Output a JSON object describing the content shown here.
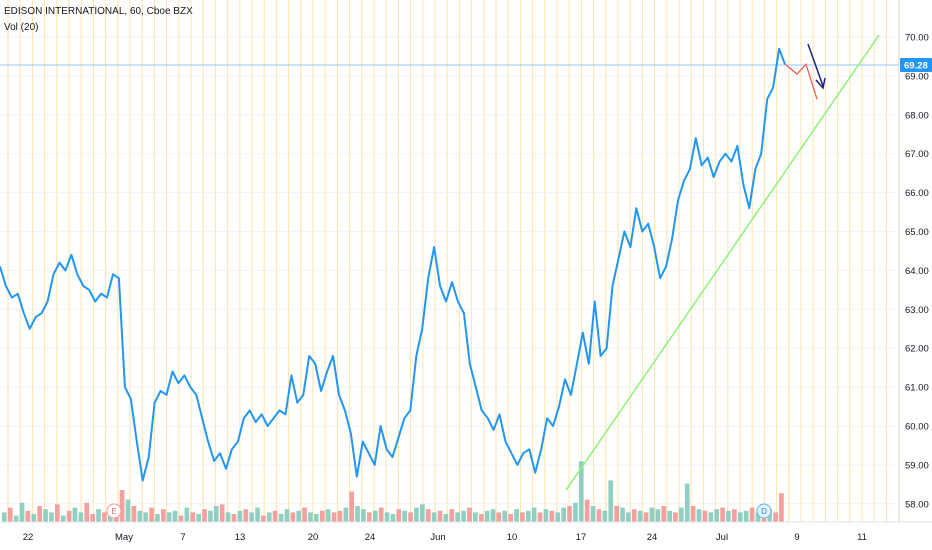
{
  "header": {
    "symbol_line": "EDISON INTERNATIONAL, 60, Cboe BZX",
    "indicator_line": "Vol (20)"
  },
  "price_axis": {
    "ticks": [
      "70.00",
      "69.00",
      "68.00",
      "67.00",
      "66.00",
      "65.00",
      "64.00",
      "63.00",
      "62.00",
      "61.00",
      "60.00",
      "59.00",
      "58.00"
    ],
    "current_price": "69.28"
  },
  "time_axis": {
    "labels": [
      "22",
      "May",
      "7",
      "13",
      "20",
      "24",
      "Jun",
      "10",
      "17",
      "24",
      "Jul",
      "9",
      "11"
    ]
  },
  "badges": {
    "earnings": "E",
    "dividend": "D"
  },
  "colors": {
    "price_line": "#2196f3",
    "trend_line": "#8ef07a",
    "projection": "#ef5350",
    "arrow": "#1a237e",
    "grid_vertical": "#fde3a7",
    "grid_horizontal": "#f0f3fa",
    "vol_up": "#7cc8b8",
    "vol_down": "#f1918e",
    "price_tag_bg": "#2196f3"
  },
  "chart_data": {
    "type": "line",
    "title": "",
    "xlabel": "",
    "ylabel": "",
    "ylim": [
      57.5,
      70.3
    ],
    "x_labels": [
      "22",
      "May",
      "7",
      "13",
      "20",
      "24",
      "Jun",
      "10",
      "17",
      "24",
      "Jul",
      "9",
      "11"
    ],
    "series": [
      {
        "values": [
          64.1,
          63.6,
          63.3,
          63.4,
          62.9,
          62.5,
          62.8,
          62.9,
          63.2,
          63.9,
          64.2,
          64.0,
          64.4,
          63.9,
          63.6,
          63.5,
          63.2,
          63.4,
          63.3,
          63.9,
          63.8,
          61.0,
          60.7,
          59.6,
          58.6,
          59.2,
          60.6,
          60.9,
          60.8,
          61.4,
          61.1,
          61.3,
          61.0,
          60.8,
          60.2,
          59.6,
          59.1,
          59.3,
          58.9,
          59.4,
          59.6,
          60.2,
          60.4,
          60.1,
          60.3,
          60.0,
          60.2,
          60.4,
          60.3,
          61.3,
          60.6,
          60.8,
          61.8,
          61.6,
          60.9,
          61.4,
          61.8,
          60.8,
          60.4,
          59.8,
          58.7,
          59.6,
          59.3,
          59.0,
          60.0,
          59.4,
          59.2,
          59.7,
          60.2,
          60.4,
          61.8,
          62.5,
          63.8,
          64.6,
          63.6,
          63.2,
          63.7,
          63.2,
          62.9,
          61.6,
          61.0,
          60.4,
          60.2,
          59.9,
          60.3,
          59.6,
          59.3,
          59.0,
          59.3,
          59.4,
          58.8,
          59.4,
          60.2,
          60.0,
          60.5,
          61.2,
          60.8,
          61.6,
          62.4,
          61.6,
          63.2,
          61.8,
          62.0,
          63.6,
          64.3,
          65.0,
          64.6,
          65.6,
          65.0,
          65.2,
          64.6,
          63.8,
          64.1,
          64.8,
          65.8,
          66.3,
          66.6,
          67.4,
          66.7,
          66.9,
          66.4,
          66.8,
          67.0,
          66.8,
          67.2,
          66.2,
          65.6,
          66.6,
          67.0,
          68.4,
          68.7,
          69.7,
          69.3
        ]
      }
    ],
    "projection_values": [
      69.3,
      69.05,
      69.3,
      68.4
    ],
    "trend_line": {
      "from": {
        "price": 58.35
      },
      "to": {
        "price": 70.05
      }
    },
    "current_price": 69.28,
    "grid": true,
    "volume_series": [
      0.3,
      0.45,
      0.2,
      0.6,
      0.35,
      0.25,
      0.5,
      0.4,
      0.3,
      0.55,
      0.2,
      0.35,
      0.45,
      0.3,
      0.6,
      0.25,
      0.4,
      0.3,
      0.5,
      0.35,
      1.0,
      0.7,
      0.5,
      0.35,
      0.3,
      0.45,
      0.25,
      0.4,
      0.3,
      0.35,
      0.2,
      0.45,
      0.3,
      0.25,
      0.4,
      0.35,
      0.5,
      0.55,
      0.3,
      0.25,
      0.35,
      0.4,
      0.3,
      0.45,
      0.2,
      0.3,
      0.35,
      0.25,
      0.4,
      0.3,
      0.35,
      0.45,
      0.3,
      0.25,
      0.35,
      0.4,
      0.3,
      0.35,
      0.45,
      0.95,
      0.5,
      0.4,
      0.3,
      0.35,
      0.45,
      0.3,
      0.25,
      0.4,
      0.35,
      0.3,
      0.45,
      0.55,
      0.4,
      0.3,
      0.35,
      0.25,
      0.4,
      0.3,
      0.35,
      0.45,
      0.3,
      0.25,
      0.35,
      0.4,
      0.3,
      0.35,
      0.25,
      0.4,
      0.3,
      0.35,
      0.45,
      0.3,
      0.4,
      0.35,
      0.3,
      0.45,
      0.5,
      0.6,
      1.9,
      0.7,
      0.5,
      0.4,
      0.35,
      1.3,
      0.5,
      0.45,
      0.3,
      0.4,
      0.35,
      0.3,
      0.45,
      0.4,
      0.5,
      0.35,
      0.3,
      0.45,
      1.2,
      0.5,
      0.4,
      0.35,
      0.3,
      0.4,
      0.45,
      0.35,
      0.4,
      0.3,
      0.35,
      0.45,
      0.3,
      0.25,
      0.4,
      0.3,
      0.9
    ],
    "volume_up_flags": [
      1,
      0,
      1,
      1,
      0,
      1,
      0,
      1,
      1,
      0,
      1,
      0,
      1,
      1,
      0,
      0,
      1,
      0,
      1,
      0,
      0,
      1,
      0,
      1,
      1,
      0,
      1,
      0,
      1,
      1,
      0,
      1,
      0,
      1,
      0,
      1,
      1,
      0,
      1,
      0,
      1,
      0,
      1,
      1,
      0,
      1,
      0,
      1,
      1,
      0,
      1,
      0,
      1,
      1,
      0,
      1,
      0,
      0,
      1,
      0,
      1,
      1,
      0,
      1,
      0,
      1,
      1,
      0,
      1,
      0,
      1,
      1,
      0,
      1,
      0,
      1,
      0,
      1,
      1,
      0,
      1,
      0,
      1,
      1,
      0,
      1,
      0,
      1,
      0,
      1,
      1,
      0,
      1,
      0,
      1,
      1,
      0,
      1,
      1,
      0,
      1,
      0,
      1,
      1,
      0,
      1,
      1,
      0,
      1,
      0,
      1,
      1,
      0,
      1,
      0,
      1,
      1,
      0,
      1,
      0,
      1,
      1,
      0,
      1,
      0,
      1,
      1,
      0,
      1,
      0,
      1,
      0,
      0
    ]
  }
}
